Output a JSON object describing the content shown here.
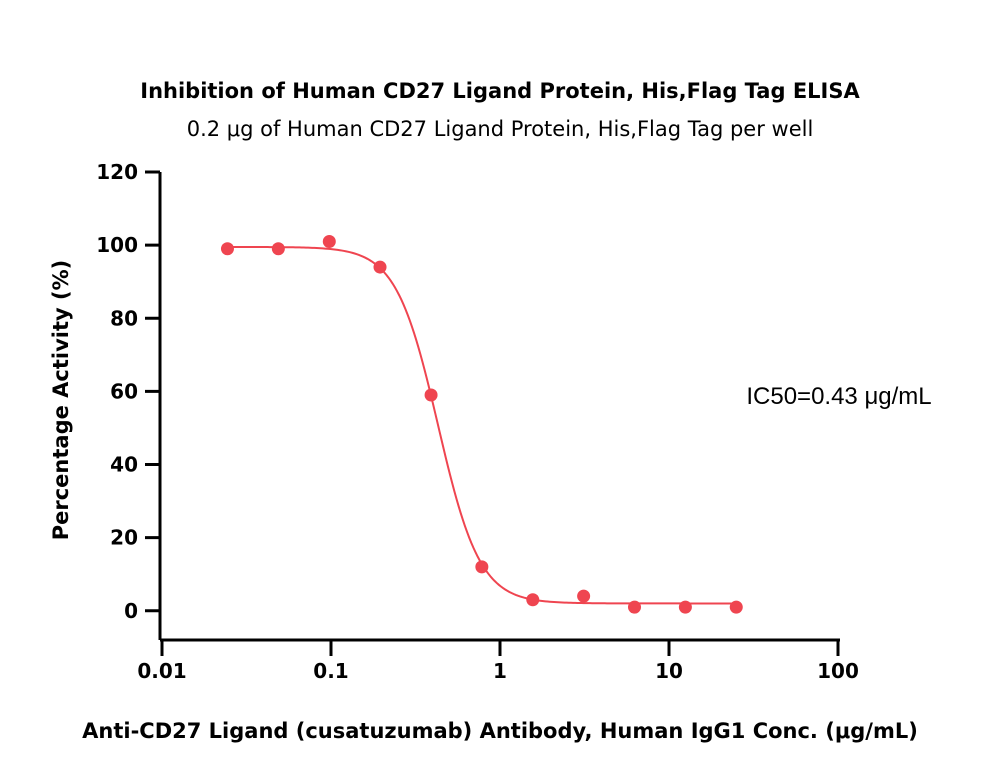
{
  "chart_data": {
    "type": "scatter",
    "title": "Inhibition of Human CD27 Ligand Protein, His,Flag Tag ELISA",
    "subtitle": "0.2 μg of Human CD27 Ligand Protein, His,Flag Tag per well",
    "xlabel": "Anti-CD27 Ligand (cusatuzumab) Antibody, Human IgG1 Conc. (μg/mL)",
    "ylabel": "Percentage Activity (%)",
    "x_scale": "log",
    "xlim": [
      0.01,
      100
    ],
    "ylim": [
      -8,
      120
    ],
    "x_ticks": [
      0.01,
      0.1,
      1,
      10,
      100
    ],
    "x_tick_labels": [
      "0.01",
      "0.1",
      "1",
      "10",
      "100"
    ],
    "y_ticks": [
      0,
      20,
      40,
      60,
      80,
      100,
      120
    ],
    "y_tick_labels": [
      "0",
      "20",
      "40",
      "60",
      "80",
      "100",
      "120"
    ],
    "grid": false,
    "color": "#ef4550",
    "series": [
      {
        "x": [
          0.0244,
          0.0488,
          0.0977,
          0.195,
          0.391,
          0.781,
          1.563,
          3.125,
          6.25,
          12.5,
          25
        ],
        "y": [
          99,
          99,
          101,
          94,
          59,
          12,
          3,
          4,
          1,
          1,
          1
        ]
      }
    ],
    "fit": {
      "type": "4PL",
      "top": 99.5,
      "bottom": 2,
      "ic50": 0.43,
      "hill": 3.5,
      "x_range": [
        0.0244,
        25
      ]
    },
    "annotation": "IC50=0.43 μg/mL"
  }
}
